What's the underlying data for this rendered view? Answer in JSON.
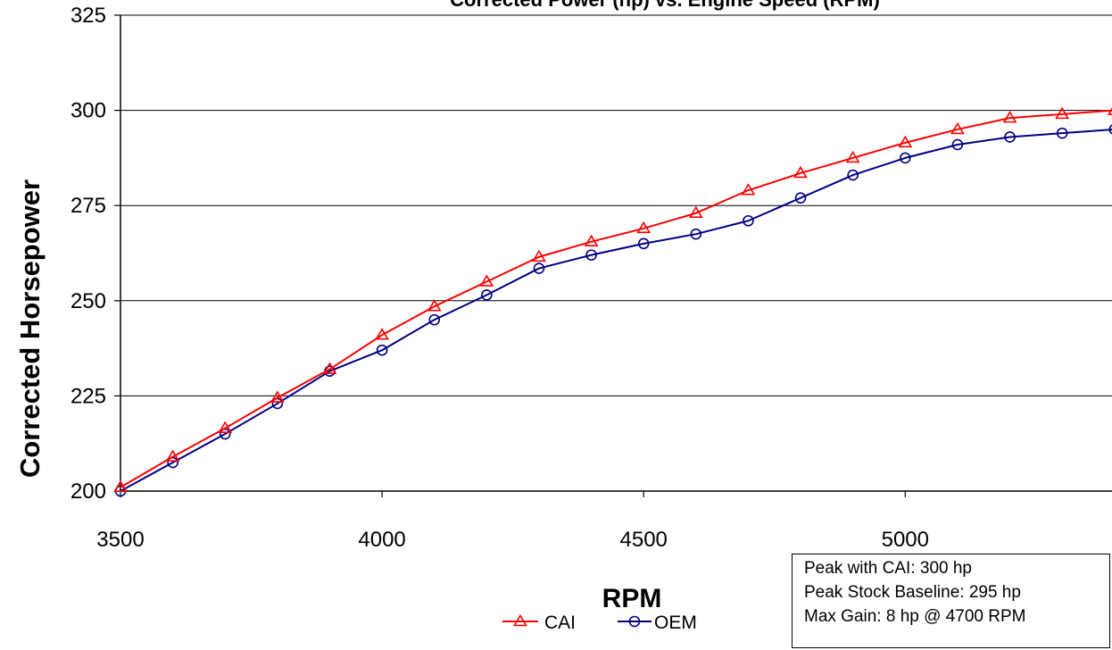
{
  "chart_data": {
    "type": "line",
    "title": "Corrected Power (hp) vs. Engine Speed (RPM)",
    "xlabel": "RPM",
    "ylabel": "Corrected Horsepower",
    "xlim": [
      3500,
      5400
    ],
    "ylim": [
      200,
      325
    ],
    "xticks": [
      3500,
      4000,
      4500,
      5000
    ],
    "yticks": [
      200,
      225,
      250,
      275,
      300,
      325
    ],
    "grid": "horizontal",
    "legend": "bottom-center",
    "x": [
      3500,
      3600,
      3700,
      3800,
      3900,
      4000,
      4100,
      4200,
      4300,
      4400,
      4500,
      4600,
      4700,
      4800,
      4900,
      5000,
      5100,
      5200,
      5300,
      5400
    ],
    "series": [
      {
        "name": "CAI",
        "color": "#ff0000",
        "marker": "triangle",
        "values": [
          201,
          209,
          216.5,
          224.5,
          232,
          241,
          248.5,
          255,
          261.5,
          265.5,
          269,
          273,
          279,
          283.5,
          287.5,
          291.5,
          295,
          298,
          299,
          300
        ]
      },
      {
        "name": "OEM",
        "color": "#000080",
        "marker": "circle",
        "values": [
          200,
          207.5,
          215,
          223,
          231.5,
          237,
          245,
          251.5,
          258.5,
          262,
          265,
          267.5,
          271,
          277,
          283,
          287.5,
          291,
          293,
          294,
          295
        ]
      }
    ],
    "annotations": [
      "Peak with CAI: 300 hp",
      "Peak Stock Baseline: 295 hp",
      "Max Gain: 8 hp @ 4700 RPM"
    ]
  }
}
